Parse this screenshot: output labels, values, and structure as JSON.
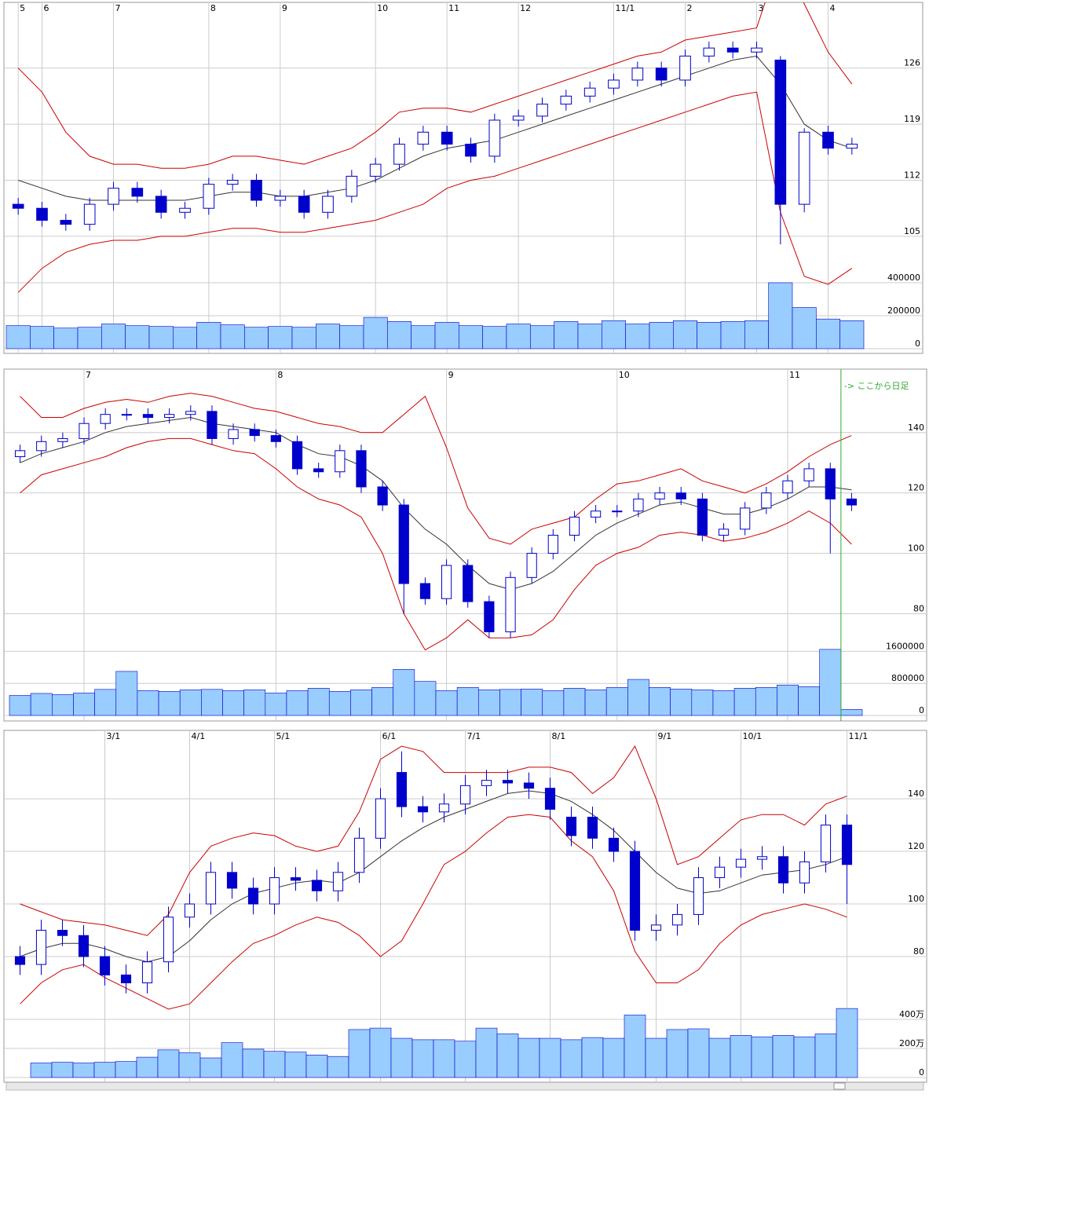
{
  "chart_data": [
    {
      "type": "candlestick",
      "categories": [
        "5",
        "6",
        null,
        null,
        "7",
        null,
        null,
        null,
        "8",
        null,
        null,
        "9",
        null,
        null,
        null,
        "10",
        null,
        null,
        "11",
        null,
        null,
        "12",
        null,
        null,
        null,
        "11/1",
        null,
        null,
        "2",
        null,
        null,
        "3",
        null,
        null,
        "4",
        null
      ],
      "open": [
        109,
        108.5,
        107,
        106.5,
        109,
        111,
        110,
        108,
        108.5,
        111.5,
        112,
        109.5,
        110,
        108,
        110,
        112.5,
        114,
        116.5,
        118,
        116.5,
        115,
        119.5,
        120,
        121.5,
        122.5,
        123.5,
        124.5,
        126,
        124.5,
        127.5,
        128.5,
        128,
        127,
        109,
        118,
        116
      ],
      "high": [
        109.8,
        109.3,
        107.8,
        109.8,
        111.8,
        111.8,
        110.8,
        109.3,
        112.3,
        112.8,
        112.8,
        110.8,
        110.8,
        110.8,
        113.3,
        114.8,
        117.3,
        118.8,
        118.8,
        117.3,
        120.3,
        120.8,
        122.3,
        123.3,
        124.3,
        125.3,
        126.8,
        126.8,
        128.3,
        129.3,
        129.3,
        129.3,
        127.5,
        118.5,
        118.8,
        117.3
      ],
      "low": [
        107.7,
        106.2,
        105.7,
        105.7,
        108.2,
        109.2,
        107.2,
        107.2,
        107.7,
        110.7,
        108.7,
        108.7,
        107.2,
        107.2,
        109.2,
        111.7,
        113.2,
        115.7,
        115.7,
        114.2,
        114.2,
        118.7,
        119.2,
        120.7,
        121.7,
        122.7,
        123.7,
        123.7,
        123.7,
        126.7,
        127.2,
        127.2,
        104,
        108,
        115.2,
        115.2
      ],
      "close": [
        108.5,
        107,
        106.5,
        109,
        111,
        110,
        108,
        108.5,
        111.5,
        112,
        109.5,
        110,
        108,
        110,
        112.5,
        114,
        116.5,
        118,
        116.5,
        115,
        119.5,
        120,
        121.5,
        122.5,
        123.5,
        124.5,
        126,
        124.5,
        127.5,
        128.5,
        128,
        128.5,
        109,
        118,
        116,
        116.5
      ],
      "color": "#0000cc",
      "ylim": [
        99.7,
        134.2
      ],
      "yticks": [
        105,
        112,
        119,
        126
      ],
      "grid": true,
      "bands": [
        {
          "color": "#cc0000",
          "values": [
            126,
            123,
            118,
            115,
            114,
            114,
            113.5,
            113.5,
            114,
            115,
            115,
            114.5,
            114,
            115,
            116,
            118,
            120.5,
            121,
            121,
            120.5,
            121.5,
            122.5,
            123.5,
            124.5,
            125.5,
            126.5,
            127.5,
            128,
            129.5,
            130,
            130.5,
            131,
            140,
            134,
            128,
            124
          ]
        },
        {
          "color": "#333333",
          "values": [
            112,
            111,
            110,
            109.5,
            109.5,
            109.5,
            109.5,
            109.5,
            110,
            110.5,
            110.5,
            110,
            110,
            110.5,
            111,
            112,
            113.5,
            115,
            116,
            116.5,
            117,
            118,
            119,
            120,
            121,
            122,
            123,
            124,
            125,
            126,
            127,
            127.5,
            124,
            119,
            117,
            116
          ]
        },
        {
          "color": "#cc0000",
          "values": [
            98,
            101,
            103,
            104,
            104.5,
            104.5,
            105,
            105,
            105.5,
            106,
            106,
            105.5,
            105.5,
            106,
            106.5,
            107,
            108,
            109,
            111,
            112,
            112.5,
            113.5,
            114.5,
            115.5,
            116.5,
            117.5,
            118.5,
            119.5,
            120.5,
            121.5,
            122.5,
            123,
            108,
            100,
            99,
            101
          ]
        }
      ],
      "volume": {
        "color": "#99ccff",
        "ylim": [
          0,
          500000
        ],
        "yticks": [
          0,
          200000,
          400000
        ],
        "values": [
          140000,
          135000,
          125000,
          130000,
          150000,
          140000,
          135000,
          130000,
          160000,
          145000,
          130000,
          135000,
          130000,
          150000,
          140000,
          190000,
          165000,
          140000,
          160000,
          140000,
          135000,
          150000,
          140000,
          165000,
          150000,
          170000,
          150000,
          160000,
          170000,
          160000,
          165000,
          170000,
          400000,
          250000,
          180000,
          170000
        ]
      }
    },
    {
      "type": "candlestick",
      "categories": [
        null,
        null,
        null,
        "7",
        null,
        null,
        null,
        null,
        null,
        null,
        null,
        null,
        "8",
        null,
        null,
        null,
        null,
        null,
        null,
        null,
        "9",
        null,
        null,
        null,
        null,
        null,
        null,
        null,
        "10",
        null,
        null,
        null,
        null,
        null,
        null,
        null,
        "11",
        null,
        null,
        null
      ],
      "open": [
        132,
        134,
        137,
        138,
        143,
        146,
        146,
        145,
        146,
        147,
        138,
        141,
        139,
        137,
        128,
        127,
        134,
        122,
        116,
        90,
        85,
        96,
        84,
        74,
        92,
        100,
        106,
        112,
        114,
        114,
        118,
        120,
        118,
        106,
        108,
        115,
        120,
        124,
        128,
        118
      ],
      "high": [
        136,
        139,
        140,
        145,
        148,
        148,
        148,
        148,
        149,
        149,
        143,
        143,
        141,
        139,
        130,
        136,
        136,
        124,
        118,
        92,
        98,
        98,
        86,
        94,
        102,
        108,
        114,
        116,
        116,
        120,
        122,
        122,
        120,
        110,
        117,
        122,
        126,
        130,
        130,
        120
      ],
      "low": [
        130,
        132,
        135,
        136,
        141,
        144,
        143,
        143,
        144,
        136,
        136,
        137,
        135,
        126,
        125,
        125,
        120,
        114,
        80,
        83,
        83,
        82,
        72,
        72,
        90,
        98,
        104,
        110,
        112,
        112,
        116,
        116,
        104,
        104,
        106,
        113,
        118,
        122,
        100,
        114
      ],
      "close": [
        134,
        137,
        138,
        143,
        146,
        146,
        145,
        146,
        147,
        138,
        141,
        139,
        137,
        128,
        127,
        134,
        122,
        116,
        90,
        85,
        96,
        84,
        74,
        92,
        100,
        106,
        112,
        114,
        114,
        118,
        120,
        118,
        106,
        108,
        115,
        120,
        124,
        128,
        118,
        116
      ],
      "color": "#0000cc",
      "ylim": [
        64,
        161
      ],
      "yticks": [
        80,
        100,
        120,
        140
      ],
      "grid": true,
      "bands": [
        {
          "color": "#cc0000",
          "values": [
            152,
            145,
            145,
            148,
            150,
            151,
            150,
            152,
            153,
            152,
            150,
            148,
            147,
            145,
            143,
            142,
            140,
            140,
            146,
            152,
            135,
            115,
            105,
            103,
            108,
            110,
            112,
            118,
            123,
            124,
            126,
            128,
            124,
            122,
            120,
            123,
            127,
            132,
            136,
            139
          ]
        },
        {
          "color": "#333333",
          "values": [
            130,
            133,
            135,
            137,
            140,
            142,
            143,
            144,
            145,
            143,
            142,
            141,
            140,
            136,
            133,
            132,
            129,
            124,
            115,
            108,
            103,
            96,
            90,
            88,
            90,
            94,
            100,
            106,
            110,
            113,
            116,
            117,
            115,
            113,
            113,
            115,
            118,
            122,
            122,
            121
          ]
        },
        {
          "color": "#cc0000",
          "values": [
            120,
            126,
            128,
            130,
            132,
            135,
            137,
            138,
            138,
            136,
            134,
            133,
            128,
            122,
            118,
            116,
            112,
            100,
            80,
            68,
            72,
            78,
            72,
            72,
            73,
            78,
            88,
            96,
            100,
            102,
            106,
            107,
            106,
            104,
            105,
            107,
            110,
            114,
            110,
            103
          ]
        }
      ],
      "annotation": "-> ここから日足",
      "annotation_color": "#33aa33",
      "volume": {
        "color": "#99ccff",
        "ylim": [
          0,
          2000000
        ],
        "yticks": [
          0,
          800000,
          1600000
        ],
        "values": [
          500000,
          550000,
          520000,
          560000,
          650000,
          1100000,
          620000,
          600000,
          640000,
          650000,
          620000,
          640000,
          560000,
          620000,
          680000,
          600000,
          640000,
          700000,
          1150000,
          850000,
          620000,
          700000,
          640000,
          650000,
          660000,
          620000,
          680000,
          640000,
          700000,
          900000,
          700000,
          660000,
          640000,
          620000,
          680000,
          700000,
          760000,
          720000,
          1650000,
          150000
        ]
      }
    },
    {
      "type": "candlestick",
      "categories": [
        null,
        null,
        null,
        null,
        "3/1",
        null,
        null,
        null,
        "4/1",
        null,
        null,
        null,
        "5/1",
        null,
        null,
        null,
        null,
        "6/1",
        null,
        null,
        null,
        "7/1",
        null,
        null,
        null,
        "8/1",
        null,
        null,
        null,
        null,
        "9/1",
        null,
        null,
        null,
        "10/1",
        null,
        null,
        null,
        null,
        "11/1"
      ],
      "open": [
        80,
        77,
        90,
        88,
        80,
        73,
        70,
        78,
        95,
        100,
        112,
        106,
        100,
        110,
        109,
        105,
        112,
        125,
        150,
        137,
        135,
        138,
        145,
        147,
        146,
        144,
        133,
        133,
        125,
        120,
        90,
        92,
        96,
        110,
        114,
        117,
        118,
        108,
        116,
        130
      ],
      "high": [
        84,
        94,
        94,
        92,
        84,
        77,
        82,
        99,
        104,
        116,
        116,
        110,
        114,
        114,
        113,
        116,
        129,
        144,
        158,
        141,
        142,
        149,
        151,
        151,
        150,
        148,
        137,
        137,
        129,
        124,
        96,
        100,
        114,
        118,
        121,
        122,
        122,
        120,
        134,
        134
      ],
      "low": [
        73,
        73,
        84,
        76,
        69,
        66,
        66,
        74,
        91,
        96,
        102,
        96,
        96,
        105,
        101,
        101,
        108,
        121,
        133,
        131,
        131,
        134,
        141,
        142,
        140,
        132,
        122,
        121,
        116,
        86,
        86,
        88,
        92,
        106,
        110,
        113,
        104,
        104,
        112,
        100
      ],
      "close": [
        77,
        90,
        88,
        80,
        73,
        70,
        78,
        95,
        100,
        112,
        106,
        100,
        110,
        109,
        105,
        112,
        125,
        140,
        137,
        135,
        138,
        145,
        147,
        146,
        144,
        136,
        126,
        125,
        120,
        90,
        92,
        96,
        110,
        114,
        117,
        118,
        108,
        116,
        130,
        115
      ],
      "color": "#0000cc",
      "ylim": [
        56,
        166
      ],
      "yticks": [
        80,
        100,
        120,
        140
      ],
      "grid": true,
      "bands": [
        {
          "color": "#cc0000",
          "values": [
            100,
            97,
            94,
            93,
            92,
            90,
            88,
            96,
            112,
            122,
            125,
            127,
            126,
            122,
            120,
            122,
            135,
            155,
            160,
            158,
            150,
            150,
            150,
            150,
            152,
            152,
            150,
            142,
            148,
            160,
            140,
            115,
            118,
            125,
            132,
            134,
            134,
            130,
            138,
            141
          ]
        },
        {
          "color": "#333333",
          "values": [
            80,
            83,
            85,
            85,
            83,
            80,
            78,
            80,
            86,
            94,
            100,
            104,
            106,
            108,
            109,
            108,
            112,
            118,
            124,
            129,
            133,
            136,
            139,
            142,
            143,
            142,
            139,
            134,
            128,
            120,
            112,
            106,
            104,
            105,
            108,
            111,
            112,
            113,
            115,
            118
          ]
        },
        {
          "color": "#cc0000",
          "values": [
            62,
            70,
            75,
            77,
            72,
            68,
            64,
            60,
            62,
            70,
            78,
            85,
            88,
            92,
            95,
            93,
            88,
            80,
            86,
            100,
            115,
            120,
            127,
            133,
            134,
            133,
            124,
            118,
            105,
            82,
            70,
            70,
            75,
            85,
            92,
            96,
            98,
            100,
            98,
            95
          ]
        }
      ],
      "volume": {
        "color": "#99ccff",
        "ylim": [
          0,
          4800000
        ],
        "yticks": [
          0,
          {
            "value": 2000000,
            "label": "200万"
          },
          {
            "value": 4000000,
            "label": "400万"
          }
        ],
        "values": [
          null,
          1000000,
          1050000,
          1000000,
          1050000,
          1100000,
          1400000,
          1900000,
          1700000,
          1350000,
          2400000,
          1950000,
          1800000,
          1750000,
          1550000,
          1450000,
          3300000,
          3400000,
          2700000,
          2600000,
          2600000,
          2500000,
          3400000,
          3000000,
          2700000,
          2700000,
          2600000,
          2750000,
          2700000,
          4300000,
          2700000,
          3300000,
          3350000,
          2700000,
          2900000,
          2800000,
          2900000,
          2800000,
          3000000,
          4750000
        ]
      }
    }
  ]
}
